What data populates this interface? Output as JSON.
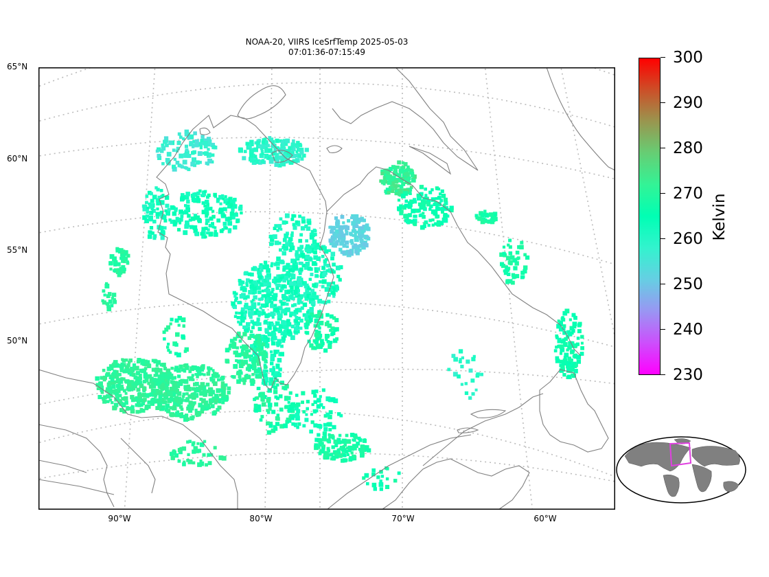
{
  "title": {
    "line1": "NOAA-20, VIIRS IceSrfTemp 2025-05-03",
    "line2": "07:01:36-07:15:49"
  },
  "map": {
    "lat_labels": [
      "65°N",
      "60°N",
      "55°N",
      "50°N"
    ],
    "lon_labels": [
      "90°W",
      "80°W",
      "70°W",
      "60°W"
    ],
    "colors": {
      "coast": "#808080",
      "grid": "#bbbbbb",
      "frame": "#000000"
    }
  },
  "colorbar": {
    "label": "Kelvin",
    "min": 230,
    "max": 300,
    "ticks": [
      "300",
      "290",
      "280",
      "270",
      "260",
      "250",
      "240",
      "230"
    ],
    "colormap": "rainbow"
  },
  "inset": {
    "name": "globe-locator",
    "highlight_color": "#e040e0",
    "land_color": "#808080"
  }
}
